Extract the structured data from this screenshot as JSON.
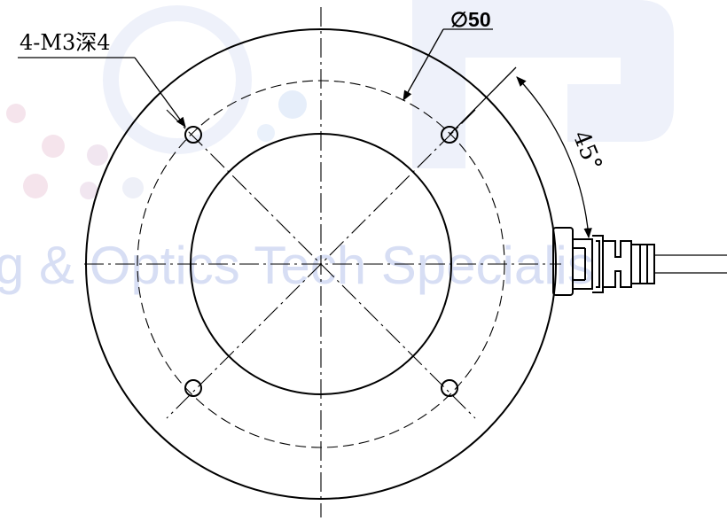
{
  "drawing": {
    "watermark": "g & Optics Tech Specialis",
    "hole_callout": "4-M3深4",
    "diameter_callout": "∅50",
    "angle_callout": "45°"
  },
  "colors": {
    "line": "#000000",
    "watermark": "#d7def4",
    "background": "#ffffff"
  }
}
